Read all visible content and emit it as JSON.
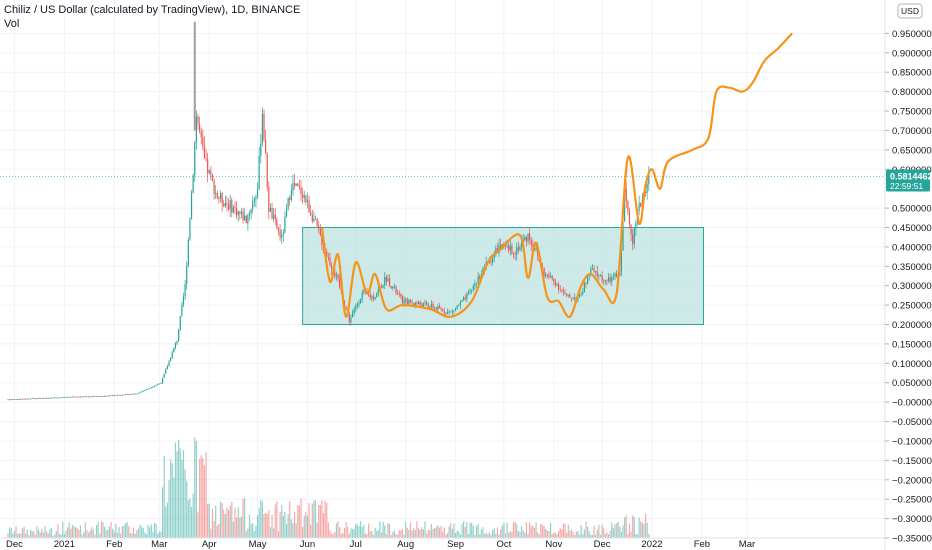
{
  "header": {
    "title": "Chiliz / US Dollar (calculated by TradingView), 1D, BINANCE",
    "indicator": "Vol"
  },
  "price_scale": {
    "currency": "USD",
    "last_price": "0.58144620",
    "countdown": "22:59:51"
  },
  "colors": {
    "up": "#26a69a",
    "down": "#ef5350",
    "projection": "#f7931a",
    "range_fill": "#b2dfdb",
    "range_border": "#26a69a"
  },
  "chart_data": {
    "type": "candlestick",
    "symbol": "CHZ/USD",
    "timeframe": "1D",
    "exchange": "BINANCE",
    "y_ticks": [
      0.95,
      0.9,
      0.85,
      0.8,
      0.75,
      0.7,
      0.65,
      0.6,
      0.5,
      0.45,
      0.4,
      0.35,
      0.3,
      0.25,
      0.2,
      0.15,
      0.1,
      0.05,
      0.0,
      -0.05,
      -0.1,
      -0.15,
      -0.2,
      -0.25,
      -0.3,
      -0.35
    ],
    "y_tick_labels": [
      "0.95000000",
      "0.90000000",
      "0.85000000",
      "0.80000000",
      "0.75000000",
      "0.70000000",
      "0.65000000",
      "0.60000000",
      "0.50000000",
      "0.45000000",
      "0.40000000",
      "0.35000000",
      "0.30000000",
      "0.25000000",
      "0.20000000",
      "0.15000000",
      "0.10000000",
      "0.05000000",
      "−0.00000000",
      "−0.05000000",
      "−0.10000000",
      "−0.15000000",
      "−0.20000000",
      "−0.25000000",
      "−0.30000000",
      "−0.35000000"
    ],
    "ylim": [
      -0.35,
      1.0
    ],
    "x_ticks": [
      "Dec",
      "2021",
      "Feb",
      "Mar",
      "Apr",
      "May",
      "Jun",
      "Jul",
      "Aug",
      "Sep",
      "Oct",
      "Nov",
      "Dec",
      "2022",
      "Feb",
      "Mar"
    ],
    "anchor_points": [
      {
        "day": 0,
        "price": 0.007
      },
      {
        "day": 30,
        "price": 0.012
      },
      {
        "day": 60,
        "price": 0.016
      },
      {
        "day": 80,
        "price": 0.022
      },
      {
        "day": 95,
        "price": 0.05
      },
      {
        "day": 105,
        "price": 0.16
      },
      {
        "day": 110,
        "price": 0.3
      },
      {
        "day": 115,
        "price": 0.6
      },
      {
        "day": 117,
        "price": 0.74
      },
      {
        "day": 122,
        "price": 0.62
      },
      {
        "day": 130,
        "price": 0.53
      },
      {
        "day": 140,
        "price": 0.5
      },
      {
        "day": 148,
        "price": 0.47
      },
      {
        "day": 155,
        "price": 0.55
      },
      {
        "day": 158,
        "price": 0.75
      },
      {
        "day": 162,
        "price": 0.5
      },
      {
        "day": 170,
        "price": 0.42
      },
      {
        "day": 176,
        "price": 0.56
      },
      {
        "day": 183,
        "price": 0.54
      },
      {
        "day": 190,
        "price": 0.47
      },
      {
        "day": 198,
        "price": 0.38
      },
      {
        "day": 205,
        "price": 0.31
      },
      {
        "day": 212,
        "price": 0.21
      },
      {
        "day": 220,
        "price": 0.28
      },
      {
        "day": 227,
        "price": 0.27
      },
      {
        "day": 235,
        "price": 0.32
      },
      {
        "day": 245,
        "price": 0.26
      },
      {
        "day": 260,
        "price": 0.25
      },
      {
        "day": 275,
        "price": 0.23
      },
      {
        "day": 285,
        "price": 0.27
      },
      {
        "day": 295,
        "price": 0.34
      },
      {
        "day": 305,
        "price": 0.4
      },
      {
        "day": 315,
        "price": 0.39
      },
      {
        "day": 323,
        "price": 0.43
      },
      {
        "day": 327,
        "price": 0.4
      },
      {
        "day": 333,
        "price": 0.33
      },
      {
        "day": 340,
        "price": 0.31
      },
      {
        "day": 347,
        "price": 0.27
      },
      {
        "day": 355,
        "price": 0.27
      },
      {
        "day": 362,
        "price": 0.34
      },
      {
        "day": 372,
        "price": 0.31
      },
      {
        "day": 380,
        "price": 0.33
      },
      {
        "day": 383,
        "price": 0.54
      },
      {
        "day": 388,
        "price": 0.42
      },
      {
        "day": 392,
        "price": 0.5
      },
      {
        "day": 398,
        "price": 0.58
      }
    ],
    "range_box": {
      "start_day": 183,
      "end_day": 432,
      "top": 0.45,
      "bottom": 0.2
    },
    "projection_path": [
      {
        "day": 195,
        "price": 0.45
      },
      {
        "day": 200,
        "price": 0.31
      },
      {
        "day": 205,
        "price": 0.38
      },
      {
        "day": 210,
        "price": 0.22
      },
      {
        "day": 216,
        "price": 0.36
      },
      {
        "day": 223,
        "price": 0.28
      },
      {
        "day": 228,
        "price": 0.33
      },
      {
        "day": 235,
        "price": 0.24
      },
      {
        "day": 245,
        "price": 0.25
      },
      {
        "day": 262,
        "price": 0.24
      },
      {
        "day": 275,
        "price": 0.22
      },
      {
        "day": 288,
        "price": 0.26
      },
      {
        "day": 298,
        "price": 0.36
      },
      {
        "day": 305,
        "price": 0.39
      },
      {
        "day": 318,
        "price": 0.43
      },
      {
        "day": 323,
        "price": 0.32
      },
      {
        "day": 328,
        "price": 0.41
      },
      {
        "day": 335,
        "price": 0.27
      },
      {
        "day": 342,
        "price": 0.26
      },
      {
        "day": 349,
        "price": 0.22
      },
      {
        "day": 356,
        "price": 0.3
      },
      {
        "day": 362,
        "price": 0.33
      },
      {
        "day": 370,
        "price": 0.29
      },
      {
        "day": 378,
        "price": 0.28
      },
      {
        "day": 385,
        "price": 0.63
      },
      {
        "day": 392,
        "price": 0.46
      },
      {
        "day": 396,
        "price": 0.56
      },
      {
        "day": 400,
        "price": 0.6
      },
      {
        "day": 405,
        "price": 0.55
      },
      {
        "day": 410,
        "price": 0.62
      },
      {
        "day": 425,
        "price": 0.65
      },
      {
        "day": 435,
        "price": 0.68
      },
      {
        "day": 440,
        "price": 0.8
      },
      {
        "day": 448,
        "price": 0.81
      },
      {
        "day": 456,
        "price": 0.8
      },
      {
        "day": 462,
        "price": 0.82
      },
      {
        "day": 470,
        "price": 0.88
      },
      {
        "day": 478,
        "price": 0.91
      },
      {
        "day": 487,
        "price": 0.95
      }
    ]
  }
}
